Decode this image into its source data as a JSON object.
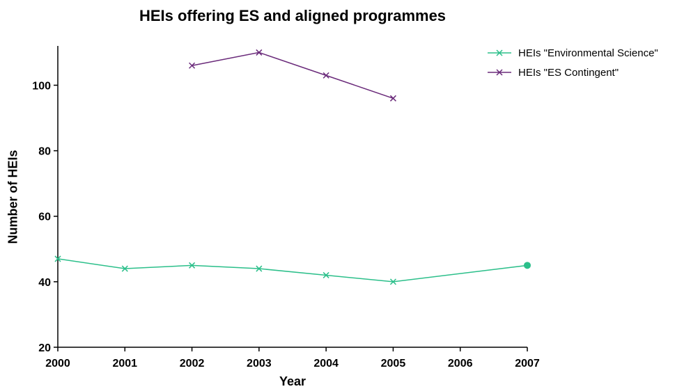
{
  "chart_data": {
    "type": "line",
    "title": "HEIs offering ES and aligned programmes",
    "xlabel": "Year",
    "ylabel": "Number of HEIs",
    "x": [
      2000,
      2001,
      2002,
      2003,
      2004,
      2005,
      2006,
      2007
    ],
    "xlim": [
      2000,
      2007
    ],
    "ylim": [
      20,
      112
    ],
    "yticks": [
      20,
      40,
      60,
      80,
      100
    ],
    "grid": false,
    "legend_position": "top-right",
    "series": [
      {
        "name": "HEIs \"Environmental Science\"",
        "color": "#2bbf8a",
        "points": [
          {
            "x": 2000,
            "y": 47
          },
          {
            "x": 2001,
            "y": 44
          },
          {
            "x": 2002,
            "y": 45
          },
          {
            "x": 2003,
            "y": 44
          },
          {
            "x": 2004,
            "y": 42
          },
          {
            "x": 2005,
            "y": 40
          },
          {
            "x": 2007,
            "y": 45,
            "marker": "circle"
          }
        ]
      },
      {
        "name": "HEIs \"ES Contingent\"",
        "color": "#6a2a7a",
        "points": [
          {
            "x": 2002,
            "y": 106
          },
          {
            "x": 2003,
            "y": 110
          },
          {
            "x": 2004,
            "y": 103
          },
          {
            "x": 2005,
            "y": 96
          }
        ]
      }
    ]
  }
}
